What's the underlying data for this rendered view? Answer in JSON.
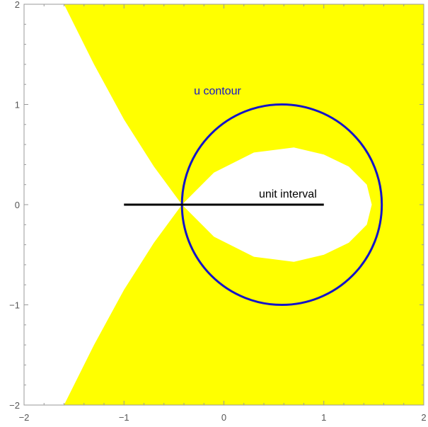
{
  "chart_data": {
    "type": "region",
    "title": "",
    "xlabel": "",
    "ylabel": "",
    "xlim": [
      -2,
      2
    ],
    "ylim": [
      -2,
      2
    ],
    "x_ticks": [
      "−2",
      "−1",
      "0",
      "1",
      "2"
    ],
    "x_tick_values": [
      -2,
      -1,
      0,
      1,
      2
    ],
    "y_ticks": [
      "−2",
      "−1",
      "0",
      "1",
      "2"
    ],
    "y_tick_values": [
      -2,
      -1,
      0,
      1,
      2
    ],
    "grid": false,
    "region": {
      "fill": "#ffff00",
      "outer_boundary_upper": [
        [
          -1.6,
          2.0
        ],
        [
          -1.3,
          1.4
        ],
        [
          -1.0,
          0.85
        ],
        [
          -0.7,
          0.38
        ],
        [
          -0.42,
          0.0
        ]
      ],
      "outer_boundary_lower": [
        [
          -0.42,
          0.0
        ],
        [
          -0.7,
          -0.38
        ],
        [
          -1.0,
          -0.85
        ],
        [
          -1.3,
          -1.4
        ],
        [
          -1.6,
          -2.0
        ]
      ],
      "loop_boundary": [
        [
          -0.42,
          0.0
        ],
        [
          -0.1,
          0.32
        ],
        [
          0.3,
          0.52
        ],
        [
          0.7,
          0.57
        ],
        [
          1.0,
          0.5
        ],
        [
          1.25,
          0.38
        ],
        [
          1.43,
          0.2
        ],
        [
          1.48,
          0.0
        ],
        [
          1.43,
          -0.2
        ],
        [
          1.25,
          -0.38
        ],
        [
          1.0,
          -0.5
        ],
        [
          0.7,
          -0.57
        ],
        [
          0.3,
          -0.52
        ],
        [
          -0.1,
          -0.32
        ],
        [
          -0.42,
          0.0
        ]
      ]
    },
    "circle": {
      "center": [
        0.58,
        0.0
      ],
      "radius": 1.0,
      "color": "#1414c8",
      "label": "u contour",
      "label_position": [
        -0.3,
        1.1
      ]
    },
    "segment": {
      "from": [
        -1.0,
        0.0
      ],
      "to": [
        1.0,
        0.0
      ],
      "color": "#000000",
      "label": "unit interval",
      "label_position": [
        0.35,
        0.07
      ]
    }
  }
}
